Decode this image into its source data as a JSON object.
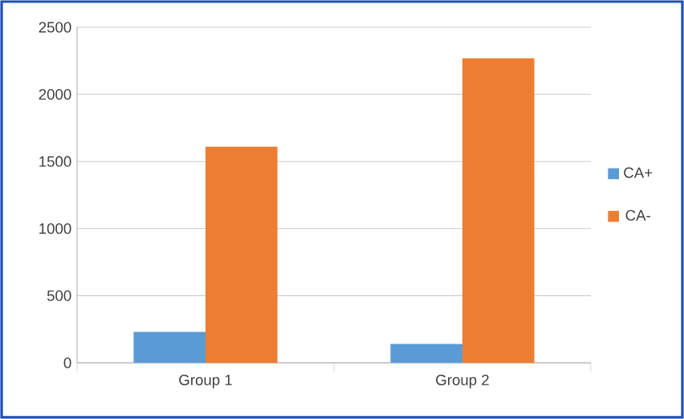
{
  "chart_data": {
    "type": "bar",
    "categories": [
      "Group 1",
      "Group 2"
    ],
    "series": [
      {
        "name": "CA+",
        "color": "#5b9bd5",
        "values": [
          230,
          140
        ]
      },
      {
        "name": "CA-",
        "color": "#ed7d31",
        "values": [
          1610,
          2270
        ]
      }
    ],
    "ylim": [
      0,
      2500
    ],
    "yticks": [
      0,
      500,
      1000,
      1500,
      2000,
      2500
    ],
    "grid": "y",
    "legend": "right"
  }
}
